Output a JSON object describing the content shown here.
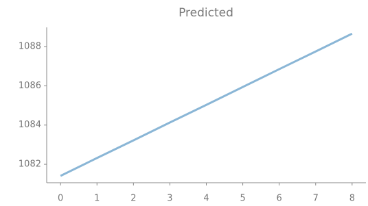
{
  "chart_data": {
    "type": "line",
    "title": "Predicted",
    "x": [
      0,
      1,
      2,
      3,
      4,
      5,
      6,
      7,
      8
    ],
    "series": [
      {
        "name": "Predicted",
        "color": "#8ab6d6",
        "values": [
          1081.41,
          1082.32,
          1083.22,
          1084.13,
          1085.03,
          1085.94,
          1086.85,
          1087.75,
          1088.66
        ]
      }
    ],
    "xlim": [
      -0.38,
      8.38
    ],
    "ylim": [
      1081.06,
      1088.98
    ],
    "xticks": [
      0,
      1,
      2,
      3,
      4,
      5,
      6,
      7,
      8
    ],
    "yticks": [
      1082,
      1084,
      1086,
      1088
    ],
    "grid": false
  }
}
